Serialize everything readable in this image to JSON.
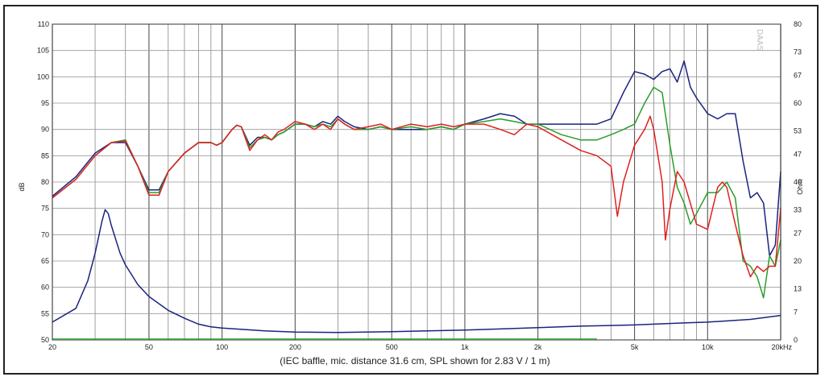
{
  "chart_data": {
    "type": "line",
    "x_scale": "log",
    "xlim": [
      20,
      20000
    ],
    "ylim": [
      50,
      110
    ],
    "ylabel": "dB",
    "y2lim": [
      0,
      80
    ],
    "y2label": "Ohm",
    "grid": true,
    "x_ticks": [
      {
        "v": 20,
        "label": "20"
      },
      {
        "v": 50,
        "label": "50"
      },
      {
        "v": 100,
        "label": "100"
      },
      {
        "v": 200,
        "label": "200"
      },
      {
        "v": 500,
        "label": "500"
      },
      {
        "v": 1000,
        "label": "1k"
      },
      {
        "v": 2000,
        "label": "2k"
      },
      {
        "v": 5000,
        "label": "5k"
      },
      {
        "v": 10000,
        "label": "10k"
      },
      {
        "v": 20000,
        "label": "20kHz"
      }
    ],
    "y_ticks": [
      50,
      55,
      60,
      65,
      70,
      75,
      80,
      85,
      90,
      95,
      100,
      105,
      110
    ],
    "y2_ticks": [
      {
        "v": 0,
        "label": "0"
      },
      {
        "v": 7,
        "label": "7"
      },
      {
        "v": 13,
        "label": "13"
      },
      {
        "v": 20,
        "label": "20"
      },
      {
        "v": 27,
        "label": "27"
      },
      {
        "v": 33,
        "label": "33"
      },
      {
        "v": 40,
        "label": "40"
      },
      {
        "v": 47,
        "label": "47"
      },
      {
        "v": 53,
        "label": "53"
      },
      {
        "v": 60,
        "label": "60"
      },
      {
        "v": 67,
        "label": "67"
      },
      {
        "v": 73,
        "label": "73"
      },
      {
        "v": 80,
        "label": "80"
      }
    ],
    "caption": "(IEC baffle, mic. distance 31.6 cm, SPL shown for 2.83 V / 1 m)",
    "watermark": "DAAS",
    "colors": {
      "on_axis": "#1a237e",
      "off_axis_1": "#2a9d2a",
      "off_axis_2": "#e02020",
      "impedance": "#1a237e",
      "baseline": "#22bb22"
    },
    "series": [
      {
        "axis": "left",
        "color": "#1a237e",
        "points": [
          [
            20,
            77.3
          ],
          [
            25,
            81
          ],
          [
            30,
            85.5
          ],
          [
            35,
            87.5
          ],
          [
            40,
            87.5
          ],
          [
            45,
            83
          ],
          [
            50,
            78.5
          ],
          [
            55,
            78.5
          ],
          [
            60,
            82
          ],
          [
            70,
            85.5
          ],
          [
            80,
            87.5
          ],
          [
            90,
            87.5
          ],
          [
            95,
            87
          ],
          [
            100,
            87.5
          ],
          [
            110,
            90
          ],
          [
            115,
            90.8
          ],
          [
            120,
            90.5
          ],
          [
            130,
            87
          ],
          [
            140,
            88.5
          ],
          [
            150,
            88.5
          ],
          [
            160,
            88
          ],
          [
            170,
            89
          ],
          [
            180,
            89.5
          ],
          [
            200,
            91
          ],
          [
            220,
            91
          ],
          [
            240,
            90.5
          ],
          [
            260,
            91.5
          ],
          [
            280,
            91
          ],
          [
            300,
            92.5
          ],
          [
            320,
            91.5
          ],
          [
            350,
            90.5
          ],
          [
            400,
            90
          ],
          [
            450,
            90.5
          ],
          [
            500,
            90
          ],
          [
            600,
            90
          ],
          [
            700,
            90
          ],
          [
            800,
            90.5
          ],
          [
            900,
            90
          ],
          [
            1000,
            91
          ],
          [
            1200,
            92
          ],
          [
            1400,
            93
          ],
          [
            1600,
            92.5
          ],
          [
            1800,
            91
          ],
          [
            2000,
            91
          ],
          [
            2500,
            91
          ],
          [
            3000,
            91
          ],
          [
            3500,
            91
          ],
          [
            4000,
            92
          ],
          [
            4500,
            97
          ],
          [
            5000,
            101
          ],
          [
            5500,
            100.5
          ],
          [
            6000,
            99.5
          ],
          [
            6500,
            101
          ],
          [
            7000,
            101.5
          ],
          [
            7500,
            99
          ],
          [
            8000,
            103
          ],
          [
            8500,
            98
          ],
          [
            9000,
            96
          ],
          [
            10000,
            93
          ],
          [
            11000,
            92
          ],
          [
            12000,
            93
          ],
          [
            13000,
            93
          ],
          [
            14000,
            84
          ],
          [
            15000,
            77
          ],
          [
            16000,
            78
          ],
          [
            17000,
            76
          ],
          [
            18000,
            66
          ],
          [
            19000,
            68
          ],
          [
            20000,
            82
          ]
        ]
      },
      {
        "axis": "left",
        "color": "#2a9d2a",
        "points": [
          [
            20,
            77
          ],
          [
            25,
            80.5
          ],
          [
            30,
            85
          ],
          [
            35,
            87.5
          ],
          [
            40,
            88
          ],
          [
            45,
            83
          ],
          [
            50,
            78
          ],
          [
            55,
            78
          ],
          [
            60,
            82
          ],
          [
            70,
            85.5
          ],
          [
            80,
            87.5
          ],
          [
            90,
            87.5
          ],
          [
            95,
            87
          ],
          [
            100,
            87.5
          ],
          [
            110,
            90
          ],
          [
            115,
            90.8
          ],
          [
            120,
            90.5
          ],
          [
            130,
            86.5
          ],
          [
            140,
            88
          ],
          [
            150,
            88.5
          ],
          [
            160,
            88
          ],
          [
            170,
            89
          ],
          [
            180,
            89.5
          ],
          [
            200,
            91
          ],
          [
            220,
            91
          ],
          [
            240,
            90.5
          ],
          [
            260,
            91
          ],
          [
            280,
            90.5
          ],
          [
            300,
            92
          ],
          [
            320,
            91
          ],
          [
            350,
            90
          ],
          [
            400,
            90
          ],
          [
            450,
            90.5
          ],
          [
            500,
            90
          ],
          [
            600,
            90.5
          ],
          [
            700,
            90
          ],
          [
            800,
            90.5
          ],
          [
            900,
            90
          ],
          [
            1000,
            91
          ],
          [
            1200,
            91.5
          ],
          [
            1400,
            92
          ],
          [
            1600,
            91.5
          ],
          [
            1800,
            91
          ],
          [
            2000,
            91
          ],
          [
            2500,
            89
          ],
          [
            3000,
            88
          ],
          [
            3500,
            88
          ],
          [
            4000,
            89
          ],
          [
            4500,
            90
          ],
          [
            5000,
            91
          ],
          [
            5500,
            95
          ],
          [
            6000,
            98
          ],
          [
            6500,
            97
          ],
          [
            7000,
            87
          ],
          [
            7500,
            79
          ],
          [
            8000,
            76
          ],
          [
            8500,
            72
          ],
          [
            9000,
            74
          ],
          [
            10000,
            78
          ],
          [
            11000,
            78
          ],
          [
            12000,
            80
          ],
          [
            13000,
            77
          ],
          [
            14000,
            65
          ],
          [
            15000,
            64
          ],
          [
            16000,
            62
          ],
          [
            17000,
            58
          ],
          [
            18000,
            66
          ],
          [
            19000,
            64
          ],
          [
            20000,
            69
          ]
        ]
      },
      {
        "axis": "left",
        "color": "#e02020",
        "points": [
          [
            20,
            77
          ],
          [
            25,
            80.5
          ],
          [
            30,
            85
          ],
          [
            35,
            87.5
          ],
          [
            40,
            87.8
          ],
          [
            45,
            83
          ],
          [
            50,
            77.5
          ],
          [
            55,
            77.5
          ],
          [
            60,
            82
          ],
          [
            70,
            85.5
          ],
          [
            80,
            87.5
          ],
          [
            90,
            87.5
          ],
          [
            95,
            87
          ],
          [
            100,
            87.5
          ],
          [
            110,
            90
          ],
          [
            115,
            90.8
          ],
          [
            120,
            90.5
          ],
          [
            130,
            86
          ],
          [
            140,
            88
          ],
          [
            150,
            89
          ],
          [
            160,
            88
          ],
          [
            170,
            89.5
          ],
          [
            180,
            90
          ],
          [
            200,
            91.5
          ],
          [
            220,
            91
          ],
          [
            240,
            90
          ],
          [
            260,
            91
          ],
          [
            280,
            90
          ],
          [
            300,
            92
          ],
          [
            320,
            91
          ],
          [
            350,
            90
          ],
          [
            400,
            90.5
          ],
          [
            450,
            91
          ],
          [
            500,
            90
          ],
          [
            600,
            91
          ],
          [
            700,
            90.5
          ],
          [
            800,
            91
          ],
          [
            900,
            90.5
          ],
          [
            1000,
            91
          ],
          [
            1200,
            91
          ],
          [
            1400,
            90
          ],
          [
            1600,
            89
          ],
          [
            1800,
            91
          ],
          [
            2000,
            90.5
          ],
          [
            2500,
            88
          ],
          [
            3000,
            86
          ],
          [
            3500,
            85
          ],
          [
            4000,
            83
          ],
          [
            4250,
            73.5
          ],
          [
            4500,
            80
          ],
          [
            5000,
            87
          ],
          [
            5500,
            90
          ],
          [
            5800,
            92.5
          ],
          [
            6000,
            90
          ],
          [
            6500,
            80
          ],
          [
            6700,
            69
          ],
          [
            7000,
            75
          ],
          [
            7500,
            82
          ],
          [
            8000,
            80
          ],
          [
            9000,
            72
          ],
          [
            10000,
            71
          ],
          [
            11000,
            79
          ],
          [
            11500,
            80
          ],
          [
            12000,
            79
          ],
          [
            13000,
            72
          ],
          [
            14000,
            66
          ],
          [
            15000,
            62
          ],
          [
            16000,
            64
          ],
          [
            17000,
            63
          ],
          [
            18000,
            64
          ],
          [
            19000,
            64
          ],
          [
            20000,
            75
          ]
        ]
      },
      {
        "axis": "right",
        "color": "#1a237e",
        "points": [
          [
            20,
            4.5
          ],
          [
            25,
            8
          ],
          [
            28,
            15
          ],
          [
            30,
            22
          ],
          [
            32,
            30
          ],
          [
            33,
            33
          ],
          [
            34,
            32
          ],
          [
            35,
            29
          ],
          [
            38,
            22
          ],
          [
            40,
            19
          ],
          [
            45,
            14
          ],
          [
            50,
            11
          ],
          [
            60,
            7.5
          ],
          [
            70,
            5.5
          ],
          [
            80,
            4
          ],
          [
            90,
            3.3
          ],
          [
            100,
            3
          ],
          [
            150,
            2.3
          ],
          [
            200,
            2
          ],
          [
            300,
            1.9
          ],
          [
            500,
            2.1
          ],
          [
            1000,
            2.5
          ],
          [
            2000,
            3.1
          ],
          [
            3000,
            3.5
          ],
          [
            5000,
            3.8
          ],
          [
            8000,
            4.3
          ],
          [
            10000,
            4.5
          ],
          [
            15000,
            5.2
          ],
          [
            20000,
            6.2
          ]
        ]
      },
      {
        "axis": "left",
        "color": "#22bb22",
        "points": [
          [
            20,
            50.2
          ],
          [
            3500,
            50.2
          ]
        ]
      }
    ]
  }
}
